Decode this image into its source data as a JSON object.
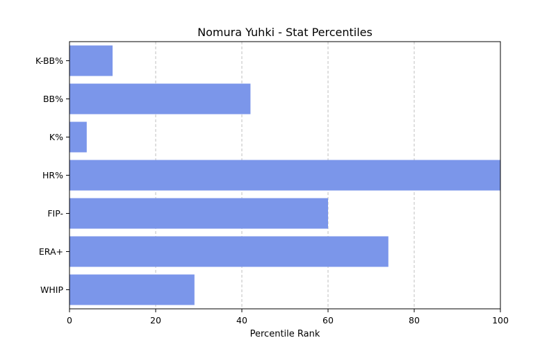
{
  "chart_data": {
    "type": "bar",
    "orientation": "horizontal",
    "title": "Nomura Yuhki - Stat Percentiles",
    "xlabel": "Percentile Rank",
    "ylabel": "",
    "categories": [
      "K-BB%",
      "BB%",
      "K%",
      "HR%",
      "FIP-",
      "ERA+",
      "WHIP"
    ],
    "values": [
      10,
      42,
      4,
      100,
      60,
      74,
      29
    ],
    "xlim": [
      0,
      100
    ],
    "xticks": [
      0,
      20,
      40,
      60,
      80,
      100
    ],
    "grid": "x-dashed",
    "bar_color": "#7b96ea"
  }
}
